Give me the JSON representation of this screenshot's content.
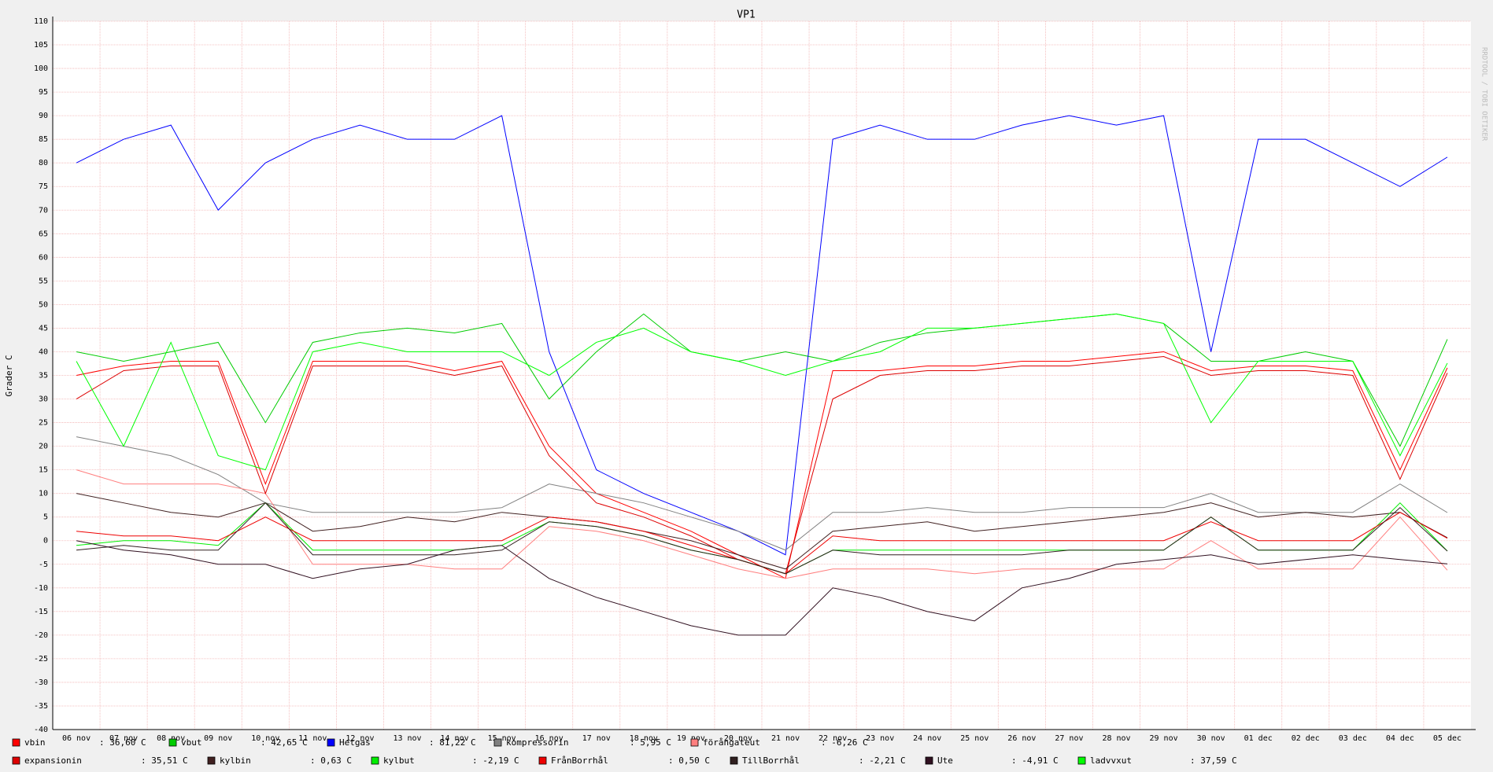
{
  "chart_data": {
    "type": "line",
    "title": "VP1",
    "y_label": "Grader C",
    "watermark": "RRDTOOL / TOBI OETIKER",
    "categories": [
      "06 nov",
      "07 nov",
      "08 nov",
      "09 nov",
      "10 nov",
      "11 nov",
      "12 nov",
      "13 nov",
      "14 nov",
      "15 nov",
      "16 nov",
      "17 nov",
      "18 nov",
      "19 nov",
      "20 nov",
      "21 nov",
      "22 nov",
      "23 nov",
      "24 nov",
      "25 nov",
      "26 nov",
      "27 nov",
      "28 nov",
      "29 nov",
      "30 nov",
      "01 dec",
      "02 dec",
      "03 dec",
      "04 dec",
      "05 dec"
    ],
    "ylim": [
      -40,
      110
    ],
    "yticks": [
      -40,
      -35,
      -30,
      -25,
      -20,
      -15,
      -10,
      -5,
      0,
      5,
      10,
      15,
      20,
      25,
      30,
      35,
      40,
      45,
      50,
      55,
      60,
      65,
      70,
      75,
      80,
      85,
      90,
      95,
      100,
      105,
      110
    ],
    "grid": true,
    "series": [
      {
        "name": "vbin",
        "current": ": 36,60 C",
        "color": "#ff0000",
        "values": [
          35,
          37,
          38,
          38,
          12,
          38,
          38,
          38,
          36,
          38,
          20,
          10,
          6,
          2,
          -3,
          -8,
          36,
          36,
          37,
          37,
          38,
          38,
          39,
          40,
          36,
          37,
          37,
          36,
          15,
          36.6
        ]
      },
      {
        "name": "vbut",
        "current": ": 42,65 C",
        "color": "#00cc00",
        "values": [
          40,
          38,
          40,
          42,
          25,
          42,
          44,
          45,
          44,
          46,
          30,
          40,
          48,
          40,
          38,
          40,
          38,
          42,
          44,
          45,
          46,
          47,
          48,
          46,
          38,
          38,
          40,
          38,
          20,
          42.65
        ]
      },
      {
        "name": "Hetgas",
        "current": ": 81,22 C",
        "color": "#0000ff",
        "values": [
          80,
          85,
          88,
          70,
          80,
          85,
          88,
          85,
          85,
          90,
          40,
          15,
          10,
          6,
          2,
          -3,
          85,
          88,
          85,
          85,
          88,
          90,
          88,
          90,
          40,
          85,
          85,
          80,
          75,
          81.22
        ]
      },
      {
        "name": "kompressorin",
        "current": ": 5,95 C",
        "color": "#808080",
        "values": [
          22,
          20,
          18,
          14,
          8,
          6,
          6,
          6,
          6,
          7,
          12,
          10,
          8,
          5,
          2,
          -2,
          6,
          6,
          7,
          6,
          6,
          7,
          7,
          7,
          10,
          6,
          6,
          6,
          12,
          5.95
        ]
      },
      {
        "name": "förångateut",
        "current": ": -6,26 C",
        "color": "#ff7f7f",
        "values": [
          15,
          12,
          12,
          12,
          10,
          -5,
          -5,
          -5,
          -6,
          -6,
          3,
          2,
          0,
          -3,
          -6,
          -8,
          -6,
          -6,
          -6,
          -7,
          -6,
          -6,
          -6,
          -6,
          0,
          -6,
          -6,
          -6,
          5,
          -6.26
        ]
      },
      {
        "name": "expansionin",
        "current": ": 35,51 C",
        "color": "#dd0000",
        "values": [
          30,
          36,
          37,
          37,
          10,
          37,
          37,
          37,
          35,
          37,
          18,
          8,
          5,
          1,
          -4,
          -7,
          30,
          35,
          36,
          36,
          37,
          37,
          38,
          39,
          35,
          36,
          36,
          35,
          13,
          35.51
        ]
      },
      {
        "name": "kylbin",
        "current": ": 0,63 C",
        "color": "#402020",
        "values": [
          10,
          8,
          6,
          5,
          8,
          2,
          3,
          5,
          4,
          6,
          5,
          4,
          2,
          0,
          -3,
          -6,
          2,
          3,
          4,
          2,
          3,
          4,
          5,
          6,
          8,
          5,
          6,
          5,
          6,
          0.63
        ]
      },
      {
        "name": "kylbut",
        "current": ": -2,19 C",
        "color": "#00ee00",
        "values": [
          -1,
          0,
          0,
          -1,
          8,
          -2,
          -2,
          -2,
          -2,
          -1,
          4,
          3,
          1,
          -2,
          -4,
          -7,
          -2,
          -2,
          -2,
          -2,
          -2,
          -2,
          -2,
          -2,
          5,
          -2,
          -2,
          -2,
          8,
          -2.19
        ]
      },
      {
        "name": "FrånBorrhål",
        "current": ": 0,50 C",
        "color": "#ee0000",
        "values": [
          2,
          1,
          1,
          0,
          5,
          0,
          0,
          0,
          0,
          0,
          5,
          4,
          2,
          -1,
          -4,
          -7,
          1,
          0,
          0,
          0,
          0,
          0,
          0,
          0,
          4,
          0,
          0,
          0,
          6,
          0.5
        ]
      },
      {
        "name": "TillBorrhål",
        "current": ": -2,21 C",
        "color": "#302020",
        "values": [
          -2,
          -1,
          -2,
          -2,
          8,
          -3,
          -3,
          -3,
          -3,
          -2,
          4,
          3,
          1,
          -2,
          -4,
          -7,
          -2,
          -3,
          -3,
          -3,
          -3,
          -2,
          -2,
          -2,
          5,
          -2,
          -2,
          -2,
          7,
          -2.21
        ]
      },
      {
        "name": "Ute",
        "current": ": -4,91 C",
        "color": "#301020",
        "values": [
          0,
          -2,
          -3,
          -5,
          -5,
          -8,
          -6,
          -5,
          -2,
          -1,
          -8,
          -12,
          -15,
          -18,
          -20,
          -20,
          -10,
          -12,
          -15,
          -17,
          -10,
          -8,
          -5,
          -4,
          -3,
          -5,
          -4,
          -3,
          -4,
          -4.91
        ]
      },
      {
        "name": "ladvvxut",
        "current": ": 37,59 C",
        "color": "#00ff00",
        "values": [
          38,
          20,
          42,
          18,
          15,
          40,
          42,
          40,
          40,
          40,
          35,
          42,
          45,
          40,
          38,
          35,
          38,
          40,
          45,
          45,
          46,
          47,
          48,
          46,
          25,
          38,
          38,
          38,
          18,
          37.59
        ]
      }
    ]
  }
}
